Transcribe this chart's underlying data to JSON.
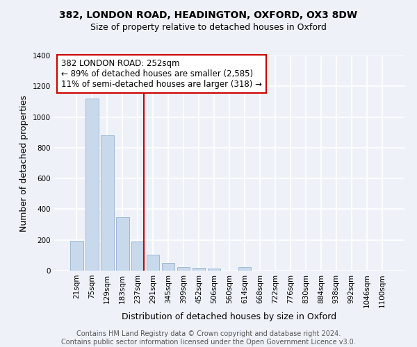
{
  "title_line1": "382, LONDON ROAD, HEADINGTON, OXFORD, OX3 8DW",
  "title_line2": "Size of property relative to detached houses in Oxford",
  "xlabel": "Distribution of detached houses by size in Oxford",
  "ylabel": "Number of detached properties",
  "categories": [
    "21sqm",
    "75sqm",
    "129sqm",
    "183sqm",
    "237sqm",
    "291sqm",
    "345sqm",
    "399sqm",
    "452sqm",
    "506sqm",
    "560sqm",
    "614sqm",
    "668sqm",
    "722sqm",
    "776sqm",
    "830sqm",
    "884sqm",
    "938sqm",
    "992sqm",
    "1046sqm",
    "1100sqm"
  ],
  "values": [
    193,
    1120,
    880,
    350,
    190,
    103,
    50,
    23,
    17,
    12,
    0,
    23,
    0,
    0,
    0,
    0,
    0,
    0,
    0,
    0,
    0
  ],
  "bar_color": "#c9d9ec",
  "bar_edge_color": "#a0b8d8",
  "vline_x_idx": 4,
  "vline_color": "#cc0000",
  "annotation_text": "382 LONDON ROAD: 252sqm\n← 89% of detached houses are smaller (2,585)\n11% of semi-detached houses are larger (318) →",
  "annotation_box_color": "#ffffff",
  "annotation_box_edge": "#cc0000",
  "ylim": [
    0,
    1400
  ],
  "yticks": [
    0,
    200,
    400,
    600,
    800,
    1000,
    1200,
    1400
  ],
  "footer_text": "Contains HM Land Registry data © Crown copyright and database right 2024.\nContains public sector information licensed under the Open Government Licence v3.0.",
  "background_color": "#eef2f8",
  "grid_color": "#ffffff",
  "title_fontsize": 10,
  "subtitle_fontsize": 9,
  "axis_label_fontsize": 9,
  "tick_fontsize": 7.5,
  "annotation_fontsize": 8.5,
  "footer_fontsize": 7
}
